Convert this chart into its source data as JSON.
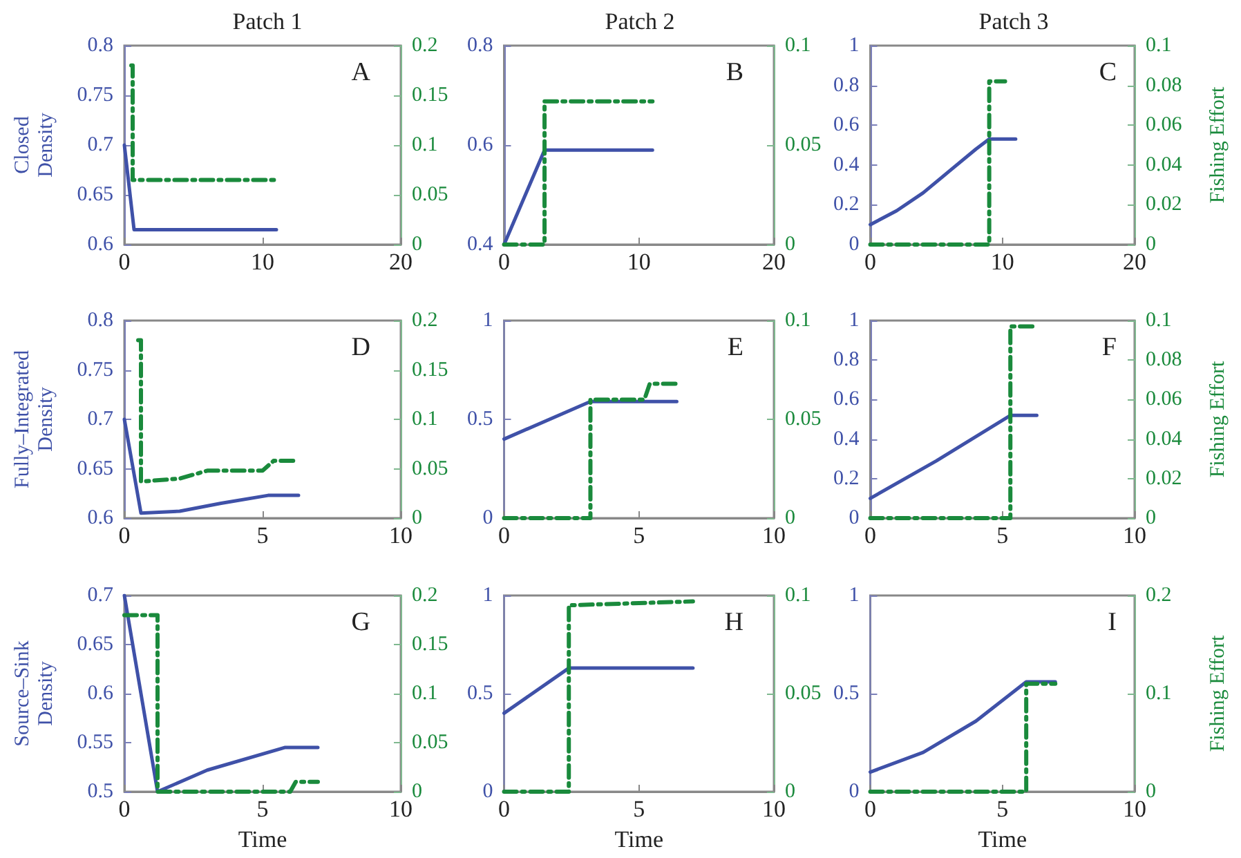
{
  "chart_data": [
    {
      "type": "line",
      "title": "Patch 1",
      "ylabel": "Closed\nDensity",
      "annotations": [
        "A"
      ],
      "xlim": [
        0,
        20
      ],
      "xticks": [
        0,
        10,
        20
      ],
      "ylim": [
        0.6,
        0.8
      ],
      "yticks": [
        0.6,
        0.65,
        0.7,
        0.75,
        0.8
      ],
      "y2lim": [
        0,
        0.2
      ],
      "y2ticks": [
        0,
        0.05,
        0.1,
        0.15,
        0.2
      ],
      "grid": false,
      "marker": "none",
      "series": [
        {
          "color": "#3f51a8",
          "line_style": "solid",
          "x": [
            0,
            0.7,
            11
          ],
          "values": [
            0.7,
            0.615,
            0.615
          ]
        },
        {
          "color": "#1a8a3c",
          "line_style": "dashed",
          "axis": "y2",
          "x": [
            0.5,
            0.6,
            0.6,
            11
          ],
          "values": [
            0.18,
            0.18,
            0.065,
            0.065
          ]
        }
      ]
    },
    {
      "type": "line",
      "title": "Patch 2",
      "annotations": [
        "B"
      ],
      "xlim": [
        0,
        20
      ],
      "xticks": [
        0,
        10,
        20
      ],
      "ylim": [
        0.4,
        0.8
      ],
      "yticks": [
        0.4,
        0.6,
        0.8
      ],
      "y2lim": [
        0,
        0.1
      ],
      "y2ticks": [
        0,
        0.05,
        0.1
      ],
      "grid": false,
      "marker": "none",
      "series": [
        {
          "color": "#3f51a8",
          "line_style": "solid",
          "x": [
            0,
            3,
            11
          ],
          "values": [
            0.4,
            0.59,
            0.59
          ]
        },
        {
          "color": "#1a8a3c",
          "line_style": "dashed",
          "axis": "y2",
          "x": [
            0,
            3,
            3,
            11
          ],
          "values": [
            0,
            0,
            0.072,
            0.072
          ]
        }
      ]
    },
    {
      "type": "line",
      "title": "Patch 3",
      "y2label": "Fishing Effort",
      "annotations": [
        "C"
      ],
      "xlim": [
        0,
        20
      ],
      "xticks": [
        0,
        10,
        20
      ],
      "ylim": [
        0,
        1
      ],
      "yticks": [
        0,
        0.2,
        0.4,
        0.6,
        0.8,
        1
      ],
      "y2lim": [
        0,
        0.1
      ],
      "y2ticks": [
        0,
        0.02,
        0.04,
        0.06,
        0.08,
        0.1
      ],
      "grid": false,
      "marker": "none",
      "series": [
        {
          "color": "#3f51a8",
          "line_style": "solid",
          "x": [
            0,
            2,
            4,
            6,
            8,
            9,
            11
          ],
          "values": [
            0.1,
            0.17,
            0.26,
            0.37,
            0.48,
            0.53,
            0.53
          ]
        },
        {
          "color": "#1a8a3c",
          "line_style": "dashed",
          "axis": "y2",
          "x": [
            0,
            9,
            9,
            10.2
          ],
          "values": [
            0,
            0,
            0.082,
            0.082
          ]
        }
      ]
    },
    {
      "type": "line",
      "ylabel": "Fully–Integrated\nDensity",
      "annotations": [
        "D"
      ],
      "xlim": [
        0,
        10
      ],
      "xticks": [
        0,
        5,
        10
      ],
      "ylim": [
        0.6,
        0.8
      ],
      "yticks": [
        0.6,
        0.65,
        0.7,
        0.75,
        0.8
      ],
      "y2lim": [
        0,
        0.2
      ],
      "y2ticks": [
        0,
        0.05,
        0.1,
        0.15,
        0.2
      ],
      "grid": false,
      "marker": "none",
      "series": [
        {
          "color": "#3f51a8",
          "line_style": "solid",
          "x": [
            0,
            0.6,
            2,
            3.5,
            5.2,
            6.3
          ],
          "values": [
            0.7,
            0.605,
            0.607,
            0.615,
            0.623,
            0.623
          ]
        },
        {
          "color": "#1a8a3c",
          "line_style": "dashed",
          "axis": "y2",
          "x": [
            0.5,
            0.6,
            0.6,
            2,
            3,
            5,
            5.4,
            6.3
          ],
          "values": [
            0.18,
            0.18,
            0.037,
            0.04,
            0.048,
            0.048,
            0.058,
            0.058
          ]
        }
      ]
    },
    {
      "type": "line",
      "annotations": [
        "E"
      ],
      "xlim": [
        0,
        10
      ],
      "xticks": [
        0,
        5,
        10
      ],
      "ylim": [
        0,
        1
      ],
      "yticks": [
        0,
        0.5,
        1
      ],
      "y2lim": [
        0,
        0.1
      ],
      "y2ticks": [
        0,
        0.05,
        0.1
      ],
      "grid": false,
      "marker": "none",
      "series": [
        {
          "color": "#3f51a8",
          "line_style": "solid",
          "x": [
            0,
            3.2,
            6.4
          ],
          "values": [
            0.4,
            0.59,
            0.59
          ]
        },
        {
          "color": "#1a8a3c",
          "line_style": "dashed",
          "axis": "y2",
          "x": [
            0,
            3.2,
            3.2,
            5.2,
            5.4,
            6.4
          ],
          "values": [
            0,
            0,
            0.06,
            0.06,
            0.068,
            0.068
          ]
        }
      ]
    },
    {
      "type": "line",
      "y2label": "Fishing Effort",
      "annotations": [
        "F"
      ],
      "xlim": [
        0,
        10
      ],
      "xticks": [
        0,
        5,
        10
      ],
      "ylim": [
        0,
        1
      ],
      "yticks": [
        0,
        0.2,
        0.4,
        0.6,
        0.8,
        1
      ],
      "y2lim": [
        0,
        0.1
      ],
      "y2ticks": [
        0,
        0.02,
        0.04,
        0.06,
        0.08,
        0.1
      ],
      "grid": false,
      "marker": "none",
      "series": [
        {
          "color": "#3f51a8",
          "line_style": "solid",
          "x": [
            0,
            2.5,
            5.3,
            6.3
          ],
          "values": [
            0.1,
            0.29,
            0.52,
            0.52
          ]
        },
        {
          "color": "#1a8a3c",
          "line_style": "dashed",
          "axis": "y2",
          "x": [
            0,
            5.3,
            5.3,
            6.3
          ],
          "values": [
            0,
            0,
            0.097,
            0.097
          ]
        }
      ]
    },
    {
      "type": "line",
      "xlabel": "Time",
      "ylabel": "Source–Sink\nDensity",
      "annotations": [
        "G"
      ],
      "xlim": [
        0,
        10
      ],
      "xticks": [
        0,
        5,
        10
      ],
      "ylim": [
        0.5,
        0.7
      ],
      "yticks": [
        0.5,
        0.55,
        0.6,
        0.65,
        0.7
      ],
      "y2lim": [
        0,
        0.2
      ],
      "y2ticks": [
        0,
        0.05,
        0.1,
        0.15,
        0.2
      ],
      "grid": false,
      "marker": "none",
      "series": [
        {
          "color": "#3f51a8",
          "line_style": "solid",
          "x": [
            0,
            1.2,
            3,
            5.8,
            7
          ],
          "values": [
            0.7,
            0.5,
            0.522,
            0.545,
            0.545
          ]
        },
        {
          "color": "#1a8a3c",
          "line_style": "dashed",
          "axis": "y2",
          "x": [
            0,
            1.2,
            1.2,
            6,
            6.2,
            7
          ],
          "values": [
            0.18,
            0.18,
            0,
            0,
            0.01,
            0.01
          ]
        }
      ]
    },
    {
      "type": "line",
      "xlabel": "Time",
      "annotations": [
        "H"
      ],
      "xlim": [
        0,
        10
      ],
      "xticks": [
        0,
        5,
        10
      ],
      "ylim": [
        0,
        1
      ],
      "yticks": [
        0,
        0.5,
        1
      ],
      "y2lim": [
        0,
        0.1
      ],
      "y2ticks": [
        0,
        0.05,
        0.1
      ],
      "grid": false,
      "marker": "none",
      "series": [
        {
          "color": "#3f51a8",
          "line_style": "solid",
          "x": [
            0,
            2.4,
            7
          ],
          "values": [
            0.4,
            0.63,
            0.63
          ]
        },
        {
          "color": "#1a8a3c",
          "line_style": "dashed",
          "axis": "y2",
          "x": [
            0,
            2.4,
            2.4,
            7
          ],
          "values": [
            0,
            0,
            0.095,
            0.097
          ]
        }
      ]
    },
    {
      "type": "line",
      "xlabel": "Time",
      "y2label": "Fishing Effort",
      "annotations": [
        "I"
      ],
      "xlim": [
        0,
        10
      ],
      "xticks": [
        0,
        5,
        10
      ],
      "ylim": [
        0,
        1
      ],
      "yticks": [
        0,
        0.5,
        1
      ],
      "y2lim": [
        0,
        0.2
      ],
      "y2ticks": [
        0,
        0.1,
        0.2
      ],
      "grid": false,
      "marker": "none",
      "series": [
        {
          "color": "#3f51a8",
          "line_style": "solid",
          "x": [
            0,
            2,
            4,
            5.9,
            7
          ],
          "values": [
            0.1,
            0.2,
            0.36,
            0.56,
            0.56
          ]
        },
        {
          "color": "#1a8a3c",
          "line_style": "dashed",
          "axis": "y2",
          "x": [
            0,
            5.9,
            5.9,
            7
          ],
          "values": [
            0,
            0,
            0.11,
            0.11
          ]
        }
      ]
    }
  ]
}
